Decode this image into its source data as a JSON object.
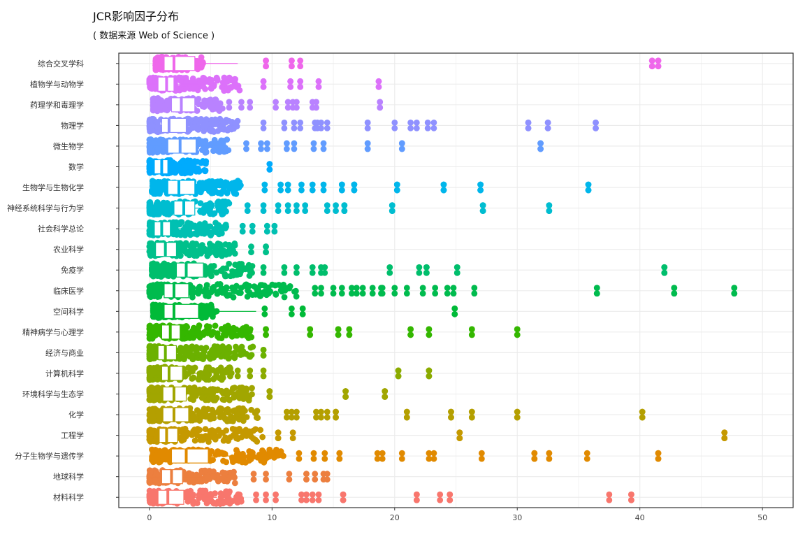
{
  "chart_data": {
    "type": "scatter",
    "title": "JCR影响因子分布",
    "subtitle": "( 数据来源 Web of Science )",
    "xlabel": "",
    "ylabel": "",
    "xlim": [
      -2.5,
      52.5
    ],
    "xticks": [
      0,
      10,
      20,
      30,
      40,
      50
    ],
    "grid": true,
    "legend": "none",
    "colors": [
      "#f8766d",
      "#ec7f3f",
      "#e18a00",
      "#c59900",
      "#b49f00",
      "#a1a600",
      "#8bab00",
      "#6bb100",
      "#34b700",
      "#00ba38",
      "#00bb4e",
      "#00be6c",
      "#00c08b",
      "#00c0b2",
      "#00bdd0",
      "#00b6eb",
      "#00abfd",
      "#619cff",
      "#8f91ff",
      "#b982ff",
      "#dc71fa",
      "#ef67eb",
      "#fb61d7"
    ],
    "categories": [
      "材料科学",
      "地球科学",
      "分子生物学与遗传学",
      "工程学",
      "化学",
      "环境科学与生态学",
      "计算机科学",
      "经济与商业",
      "精神病学与心理学",
      "空间科学",
      "临床医学",
      "免疫学",
      "农业科学",
      "社会科学总论",
      "神经系统科学与行为学",
      "生物学与生物化学",
      "数学",
      "微生物学",
      "物理学",
      "药理学和毒理学",
      "植物学与动物学",
      "综合交叉学科"
    ],
    "series": [
      {
        "name": "综合交叉学科",
        "box": [
          0.5,
          1.2,
          2.0,
          3.7,
          7.2
        ],
        "dense_max": 4.4,
        "outliers": [
          9.5,
          9.5,
          11.6,
          11.6,
          12.3,
          41.0,
          41.0,
          41.5,
          41.5
        ]
      },
      {
        "name": "植物学与动物学",
        "box": [
          0,
          0.7,
          1.4,
          2.0,
          4.0
        ],
        "dense_max": 7.5,
        "outliers": [
          9.3,
          9.3,
          11.5,
          11.5,
          12.3,
          12.3,
          13.8,
          13.8,
          18.7,
          18.7
        ]
      },
      {
        "name": "药理学和毒理学",
        "box": [
          0.3,
          1.8,
          2.6,
          3.7,
          5.5
        ],
        "dense_max": 6.0,
        "outliers": [
          6.5,
          7.5,
          8.2,
          10.3,
          11.3,
          11.7,
          12.0,
          13.3,
          13.6,
          13.6,
          18.8,
          18.8
        ]
      },
      {
        "name": "物理学",
        "box": [
          0,
          1.0,
          1.6,
          3.0,
          5.5
        ],
        "dense_max": 7.2,
        "outliers": [
          9.3,
          11.0,
          11.8,
          12.3,
          13.5,
          13.7,
          14.0,
          14.5,
          17.8,
          17.8,
          20.0,
          21.3,
          21.8,
          22.7,
          23.2,
          30.9,
          30.9,
          32.5,
          32.5,
          36.4,
          36.4
        ]
      },
      {
        "name": "微生物学",
        "box": [
          0,
          1.5,
          2.5,
          3.8,
          5.6
        ],
        "dense_max": 6.5,
        "outliers": [
          7.9,
          9.1,
          9.6,
          11.2,
          11.8,
          13.4,
          14.2,
          17.8,
          17.8,
          20.6,
          20.6,
          31.9,
          31.9
        ]
      },
      {
        "name": "数学",
        "box": [
          0,
          0.4,
          1.0,
          1.5,
          3.0
        ],
        "dense_max": 4.7,
        "outliers": [
          9.8
        ]
      },
      {
        "name": "生物学与生物化学",
        "box": [
          0.2,
          1.5,
          2.4,
          3.7,
          6.0
        ],
        "dense_max": 7.5,
        "outliers": [
          9.4,
          10.7,
          11.3,
          12.4,
          13.3,
          14.2,
          15.7,
          15.7,
          16.7,
          16.7,
          20.2,
          20.2,
          24.0,
          24.0,
          27.0,
          27.0,
          35.8,
          35.8
        ]
      },
      {
        "name": "神经系统科学与行为学",
        "box": [
          0,
          2.0,
          2.8,
          3.7,
          6.2
        ],
        "dense_max": 6.5,
        "outliers": [
          8.0,
          9.3,
          10.5,
          11.3,
          12.0,
          12.7,
          14.5,
          15.2,
          15.9,
          15.9,
          19.8,
          19.8,
          27.2,
          27.2,
          32.6,
          32.6
        ]
      },
      {
        "name": "社会科学总论",
        "box": [
          0,
          0.4,
          1.0,
          1.7,
          3.5
        ],
        "dense_max": 6.5,
        "outliers": [
          7.6,
          8.4,
          9.6,
          10.2
        ]
      },
      {
        "name": "农业科学",
        "box": [
          0,
          0.5,
          1.3,
          2.2,
          4.2
        ],
        "dense_max": 7.0,
        "outliers": [
          8.3,
          9.5,
          9.5
        ]
      },
      {
        "name": "免疫学",
        "box": [
          0.2,
          2.2,
          3.0,
          4.4,
          7.0
        ],
        "dense_max": 8.5,
        "outliers": [
          9.3,
          11.0,
          12.0,
          13.3,
          14.0,
          14.3,
          19.6,
          22.0,
          22.6,
          22.6,
          25.1,
          25.1,
          42.0,
          42.0
        ]
      },
      {
        "name": "临床医学",
        "box": [
          0,
          1.2,
          2.0,
          3.2,
          7.5
        ],
        "dense_max": 12.0,
        "outliers": [
          13.5,
          14.0,
          15.0,
          15.7,
          16.5,
          16.9,
          17.4,
          18.2,
          18.9,
          19.0,
          20.0,
          21.0,
          22.3,
          23.3,
          24.3,
          24.8,
          26.5,
          36.5,
          36.5,
          42.8,
          42.8,
          47.7,
          47.7
        ]
      },
      {
        "name": "空间科学",
        "box": [
          0.3,
          1.2,
          2.0,
          4.0,
          8.7
        ],
        "dense_max": 5.5,
        "outliers": [
          9.4,
          11.6,
          12.5,
          12.5,
          24.9,
          24.9
        ]
      },
      {
        "name": "精神病学与心理学",
        "box": [
          0,
          1.0,
          1.7,
          2.5,
          4.5
        ],
        "dense_max": 8.5,
        "outliers": [
          9.5,
          9.5,
          13.1,
          13.1,
          15.4,
          15.4,
          16.3,
          16.3,
          21.3,
          21.3,
          22.8,
          22.8,
          26.3,
          26.3,
          30.0,
          30.0
        ]
      },
      {
        "name": "经济与商业",
        "box": [
          0,
          0.7,
          1.3,
          2.2,
          4.0
        ],
        "dense_max": 8.5,
        "outliers": [
          9.3,
          9.3
        ]
      },
      {
        "name": "计算机科学",
        "box": [
          0,
          1.0,
          1.6,
          2.7,
          4.5
        ],
        "dense_max": 6.8,
        "outliers": [
          7.2,
          8.2,
          9.3,
          20.3,
          20.3,
          22.8,
          22.8
        ]
      },
      {
        "name": "环境科学与生态学",
        "box": [
          0,
          1.1,
          2.0,
          3.0,
          5.0
        ],
        "dense_max": 8.5,
        "outliers": [
          9.8,
          9.8,
          16.0,
          16.0,
          19.2,
          19.2
        ]
      },
      {
        "name": "化学",
        "box": [
          0,
          1.1,
          2.0,
          3.2,
          5.5
        ],
        "dense_max": 9.0,
        "outliers": [
          11.2,
          11.6,
          12.0,
          13.6,
          14.0,
          14.5,
          15.2,
          15.2,
          21.0,
          21.0,
          24.6,
          24.6,
          26.3,
          26.3,
          30.0,
          30.0,
          40.2,
          40.2
        ]
      },
      {
        "name": "工程学",
        "box": [
          0,
          0.8,
          1.4,
          2.3,
          4.0
        ],
        "dense_max": 9.5,
        "outliers": [
          10.5,
          10.5,
          11.7,
          25.3,
          25.3,
          46.9,
          46.9
        ]
      },
      {
        "name": "分子生物学与遗传学",
        "box": [
          0.2,
          1.8,
          3.0,
          4.8,
          8.0
        ],
        "dense_max": 11.0,
        "outliers": [
          12.2,
          13.4,
          14.3,
          15.5,
          15.5,
          18.6,
          19.0,
          20.6,
          22.8,
          23.2,
          27.1,
          31.4,
          31.4,
          32.6,
          32.6,
          35.7,
          41.5,
          41.5
        ]
      },
      {
        "name": "地球科学",
        "box": [
          0,
          1.0,
          1.8,
          2.7,
          4.5
        ],
        "dense_max": 7.0,
        "outliers": [
          8.5,
          9.5,
          11.4,
          12.8,
          12.8,
          13.5,
          14.2,
          14.5
        ]
      },
      {
        "name": "材料科学",
        "box": [
          0,
          0.7,
          1.5,
          2.8,
          5.5
        ],
        "dense_max": 7.5,
        "outliers": [
          8.7,
          9.5,
          10.3,
          12.4,
          12.8,
          13.3,
          13.8,
          15.8,
          15.8,
          21.8,
          21.8,
          23.7,
          24.5,
          24.5,
          37.5,
          39.3,
          39.3
        ]
      }
    ]
  }
}
